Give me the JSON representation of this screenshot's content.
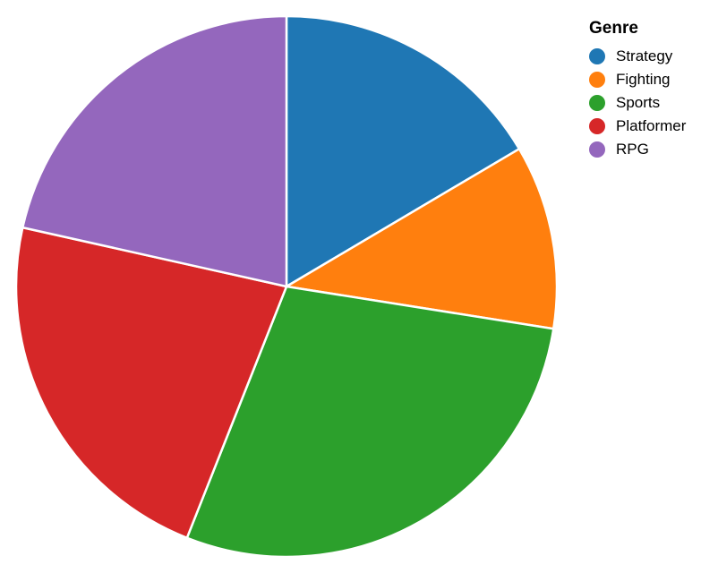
{
  "chart_data": {
    "type": "pie",
    "categories": [
      "Strategy",
      "Fighting",
      "Sports",
      "Platformer",
      "RPG"
    ],
    "values": [
      16.5,
      11.0,
      28.5,
      22.5,
      21.5
    ],
    "colors": [
      "#1f77b4",
      "#ff7f0e",
      "#2ca02c",
      "#d62728",
      "#9467bd"
    ],
    "legend": {
      "title": "Genre",
      "position": "top-right"
    }
  }
}
